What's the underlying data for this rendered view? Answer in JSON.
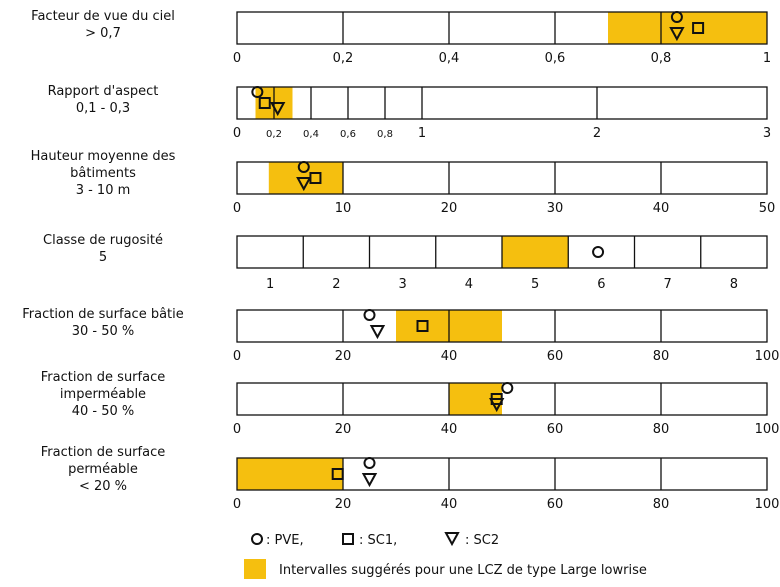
{
  "colors": {
    "interval": "#f5bf0f",
    "stroke": "#111111"
  },
  "legend": {
    "pve_label": ": PVE,",
    "sc1_label": ": SC1,",
    "sc2_label": ": SC2",
    "interval_label": "Intervalles suggérés pour une LCZ de type Large lowrise"
  },
  "chart_data": {
    "type": "range-scale-diagram",
    "rows": [
      {
        "name_lines": [
          "Facteur de vue du ciel",
          "> 0,7"
        ],
        "range": [
          0,
          1
        ],
        "cells": [
          0,
          0.2,
          0.4,
          0.6,
          0.8,
          1
        ],
        "extra_dividers": [
          0.8
        ],
        "tick_labels": [
          {
            "v": 0,
            "t": "0"
          },
          {
            "v": 0.2,
            "t": "0,2"
          },
          {
            "v": 0.4,
            "t": "0,4"
          },
          {
            "v": 0.6,
            "t": "0,6"
          },
          {
            "v": 0.8,
            "t": "0,8"
          },
          {
            "v": 1,
            "t": "1"
          }
        ],
        "interval": [
          0.7,
          1
        ],
        "markers": {
          "PVE": 0.83,
          "SC1": 0.87,
          "SC2": 0.83
        }
      },
      {
        "name_lines": [
          "Rapport d'aspect",
          "0,1 - 0,3"
        ],
        "range": [
          0,
          3
        ],
        "cells": [
          0,
          0.2,
          0.4,
          0.6,
          0.8,
          1,
          2,
          3
        ],
        "tick_labels": [
          {
            "v": 0,
            "t": "0"
          },
          {
            "v": 0.2,
            "t": "0,2",
            "small": true
          },
          {
            "v": 0.4,
            "t": "0,4",
            "small": true
          },
          {
            "v": 0.6,
            "t": "0,6",
            "small": true
          },
          {
            "v": 0.8,
            "t": "0,8",
            "small": true
          },
          {
            "v": 1,
            "t": "1"
          },
          {
            "v": 2,
            "t": "2"
          },
          {
            "v": 3,
            "t": "3"
          }
        ],
        "interval": [
          0.1,
          0.3
        ],
        "markers": {
          "PVE": 0.11,
          "SC1": 0.15,
          "SC2": 0.22
        }
      },
      {
        "name_lines": [
          "Hauteur moyenne des",
          "bâtiments",
          "3 - 10 m"
        ],
        "range": [
          0,
          50
        ],
        "cells": [
          0,
          10,
          20,
          30,
          40,
          50
        ],
        "tick_labels": [
          {
            "v": 0,
            "t": "0"
          },
          {
            "v": 10,
            "t": "10"
          },
          {
            "v": 20,
            "t": "20"
          },
          {
            "v": 30,
            "t": "30"
          },
          {
            "v": 40,
            "t": "40"
          },
          {
            "v": 50,
            "t": "50"
          }
        ],
        "interval": [
          3,
          10
        ],
        "markers": {
          "PVE": 6.3,
          "SC1": 7.4,
          "SC2": 6.3
        }
      },
      {
        "name_lines": [
          "Classe de rugosité",
          "5"
        ],
        "range": [
          0,
          8
        ],
        "cells": [
          0,
          1,
          2,
          3,
          4,
          5,
          6,
          7,
          8
        ],
        "tick_labels": [
          {
            "v": 0.5,
            "t": "1"
          },
          {
            "v": 1.5,
            "t": "2"
          },
          {
            "v": 2.5,
            "t": "3"
          },
          {
            "v": 3.5,
            "t": "4"
          },
          {
            "v": 4.5,
            "t": "5"
          },
          {
            "v": 5.5,
            "t": "6"
          },
          {
            "v": 6.5,
            "t": "7"
          },
          {
            "v": 7.5,
            "t": "8"
          }
        ],
        "interval": [
          4,
          5
        ],
        "markers": {
          "PVE": 5.45
        }
      },
      {
        "name_lines": [
          "Fraction de surface bâtie",
          "30 - 50 %"
        ],
        "range": [
          0,
          100
        ],
        "cells": [
          0,
          20,
          40,
          60,
          80,
          100
        ],
        "tick_labels": [
          {
            "v": 0,
            "t": "0"
          },
          {
            "v": 20,
            "t": "20"
          },
          {
            "v": 40,
            "t": "40"
          },
          {
            "v": 60,
            "t": "60"
          },
          {
            "v": 80,
            "t": "80"
          },
          {
            "v": 100,
            "t": "100"
          }
        ],
        "interval": [
          30,
          50
        ],
        "markers": {
          "PVE": 25,
          "SC1": 35,
          "SC2": 26.5
        }
      },
      {
        "name_lines": [
          "Fraction de surface",
          "imperméable",
          "40 - 50 %"
        ],
        "range": [
          0,
          100
        ],
        "cells": [
          0,
          20,
          40,
          60,
          80,
          100
        ],
        "tick_labels": [
          {
            "v": 0,
            "t": "0"
          },
          {
            "v": 20,
            "t": "20"
          },
          {
            "v": 40,
            "t": "40"
          },
          {
            "v": 60,
            "t": "60"
          },
          {
            "v": 80,
            "t": "80"
          },
          {
            "v": 100,
            "t": "100"
          }
        ],
        "interval": [
          40,
          50
        ],
        "markers": {
          "PVE": 51,
          "SC1": 49,
          "SC2": 49
        }
      },
      {
        "name_lines": [
          "Fraction de surface",
          "perméable",
          "< 20 %"
        ],
        "range": [
          0,
          100
        ],
        "cells": [
          0,
          20,
          40,
          60,
          80,
          100
        ],
        "tick_labels": [
          {
            "v": 0,
            "t": "0"
          },
          {
            "v": 20,
            "t": "20"
          },
          {
            "v": 40,
            "t": "40"
          },
          {
            "v": 60,
            "t": "60"
          },
          {
            "v": 80,
            "t": "80"
          },
          {
            "v": 100,
            "t": "100"
          }
        ],
        "interval": [
          0,
          20
        ],
        "markers": {
          "PVE": 25,
          "SC1": 19,
          "SC2": 25
        }
      }
    ]
  }
}
